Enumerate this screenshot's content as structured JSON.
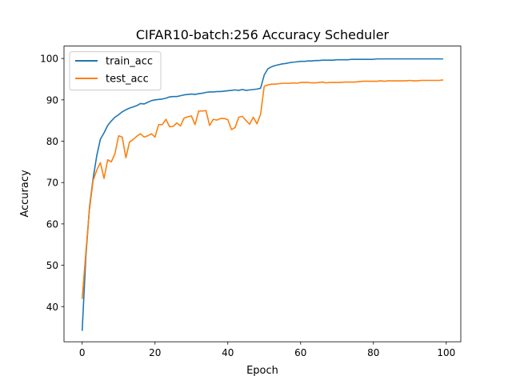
{
  "chart_data": {
    "type": "line",
    "title": "CIFAR10-batch:256 Accuracy Scheduler",
    "xlabel": "Epoch",
    "ylabel": "Accuracy",
    "xlim": [
      -5,
      104
    ],
    "ylim": [
      31.5,
      103
    ],
    "xticks": [
      0,
      20,
      40,
      60,
      80,
      100
    ],
    "yticks": [
      40,
      50,
      60,
      70,
      80,
      90,
      100
    ],
    "grid": false,
    "legend": "top-left",
    "series": [
      {
        "name": "train_acc",
        "color": "#1f77b4",
        "values": [
          34.3,
          52.0,
          64.0,
          71.0,
          76.5,
          80.5,
          82.0,
          83.8,
          84.9,
          85.8,
          86.4,
          87.1,
          87.6,
          88.0,
          88.3,
          88.6,
          89.1,
          89.0,
          89.4,
          89.8,
          90.0,
          90.1,
          90.2,
          90.4,
          90.7,
          90.8,
          90.8,
          91.0,
          91.2,
          91.3,
          91.4,
          91.3,
          91.5,
          91.6,
          91.8,
          91.9,
          91.9,
          92.0,
          92.0,
          92.1,
          92.2,
          92.3,
          92.4,
          92.3,
          92.5,
          92.3,
          92.4,
          92.5,
          92.6,
          92.8,
          96.0,
          97.5,
          98.0,
          98.3,
          98.5,
          98.7,
          98.8,
          99.0,
          99.1,
          99.2,
          99.3,
          99.3,
          99.4,
          99.4,
          99.5,
          99.5,
          99.6,
          99.6,
          99.6,
          99.6,
          99.7,
          99.7,
          99.7,
          99.7,
          99.8,
          99.8,
          99.8,
          99.8,
          99.8,
          99.8,
          99.8,
          99.9,
          99.9,
          99.9,
          99.9,
          99.9,
          99.9,
          99.9,
          99.9,
          99.9,
          99.9,
          99.9,
          99.9,
          99.9,
          99.9,
          99.9,
          99.9,
          99.9,
          99.9,
          99.9
        ]
      },
      {
        "name": "test_acc",
        "color": "#ff7f0e",
        "values": [
          42.0,
          53.0,
          63.5,
          70.5,
          73.0,
          74.8,
          71.0,
          75.5,
          75.0,
          77.0,
          81.3,
          81.0,
          76.0,
          79.8,
          80.4,
          81.2,
          81.8,
          81.0,
          81.3,
          81.8,
          81.0,
          84.0,
          84.0,
          85.3,
          83.5,
          83.6,
          84.4,
          83.7,
          85.6,
          85.9,
          86.1,
          84.0,
          87.3,
          87.3,
          87.4,
          83.8,
          85.3,
          85.1,
          85.5,
          85.5,
          85.2,
          82.8,
          83.3,
          85.8,
          86.0,
          85.0,
          84.1,
          85.8,
          84.2,
          86.5,
          93.3,
          93.6,
          93.8,
          93.8,
          93.9,
          94.0,
          94.0,
          94.0,
          94.1,
          94.0,
          94.2,
          94.2,
          94.2,
          94.1,
          94.1,
          94.2,
          94.3,
          94.1,
          94.2,
          94.2,
          94.2,
          94.2,
          94.3,
          94.3,
          94.3,
          94.3,
          94.4,
          94.5,
          94.5,
          94.5,
          94.5,
          94.5,
          94.6,
          94.5,
          94.6,
          94.6,
          94.6,
          94.6,
          94.6,
          94.6,
          94.7,
          94.6,
          94.6,
          94.7,
          94.7,
          94.7,
          94.7,
          94.7,
          94.7,
          94.8
        ]
      }
    ]
  }
}
